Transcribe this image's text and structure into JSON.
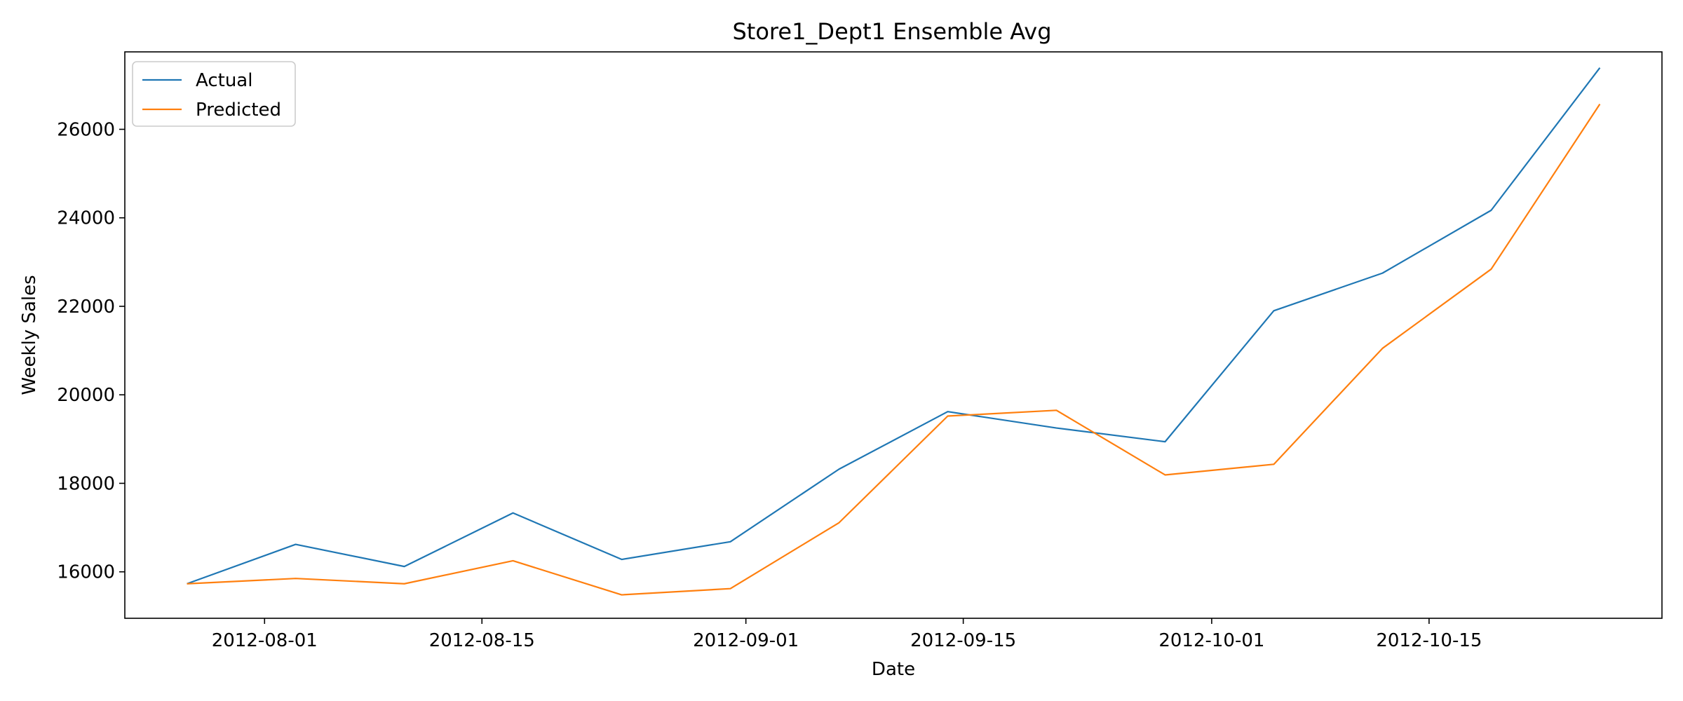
{
  "chart_data": {
    "type": "line",
    "title": "Store1_Dept1 Ensemble Avg",
    "xlabel": "Date",
    "ylabel": "Weekly Sales",
    "x": [
      "2012-07-27",
      "2012-08-03",
      "2012-08-10",
      "2012-08-17",
      "2012-08-24",
      "2012-08-31",
      "2012-09-07",
      "2012-09-14",
      "2012-09-21",
      "2012-09-28",
      "2012-10-05",
      "2012-10-12",
      "2012-10-19",
      "2012-10-26"
    ],
    "x_ticks": [
      "2012-08-01",
      "2012-08-15",
      "2012-09-01",
      "2012-09-15",
      "2012-10-01",
      "2012-10-15"
    ],
    "xlim": [
      "2012-07-23",
      "2012-10-30"
    ],
    "ylim": [
      14950,
      27750
    ],
    "y_ticks": [
      16000,
      18000,
      20000,
      22000,
      24000,
      26000
    ],
    "grid": false,
    "legend_position": "top-left",
    "series": [
      {
        "name": "Actual",
        "color": "#1f77b4",
        "values": [
          15730,
          16620,
          16120,
          17330,
          16280,
          16680,
          18320,
          19620,
          19250,
          18940,
          21900,
          22750,
          24170,
          27390
        ]
      },
      {
        "name": "Predicted",
        "color": "#ff7f0e",
        "values": [
          15730,
          15850,
          15730,
          16250,
          15480,
          15620,
          17110,
          19520,
          19650,
          18190,
          18430,
          21050,
          22840,
          26570
        ]
      }
    ]
  }
}
